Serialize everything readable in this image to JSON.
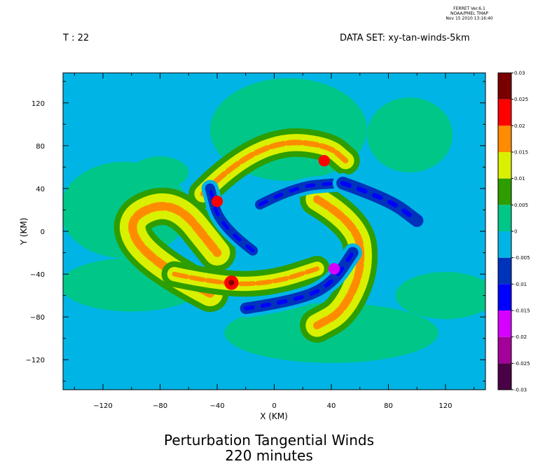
{
  "header": {
    "line1": "FERRET  Ver.6.1",
    "line2": "NOAA/PMEL TMAP",
    "line3": "Nov 15 2010 13:16:40",
    "time_label": "T : 22",
    "dataset_label": "DATA SET: xy-tan-winds-5km"
  },
  "title": {
    "line1": "Perturbation Tangential Winds",
    "line2": "220 minutes"
  },
  "chart_data": {
    "type": "heatmap",
    "xlabel": "X (KM)",
    "ylabel": "Y (KM)",
    "xlim": [
      -148,
      148
    ],
    "ylim": [
      -148,
      148
    ],
    "x_ticks": [
      -120,
      -80,
      -40,
      0,
      40,
      80,
      120
    ],
    "y_ticks": [
      -120,
      -80,
      -40,
      0,
      40,
      80,
      120
    ],
    "x_minor_step": 20,
    "y_minor_step": 20,
    "colorbar": {
      "levels": [
        "-0.03",
        "-0.025",
        "-0.02",
        "-0.015",
        "-0.01",
        "-0.005",
        "0",
        "0.005",
        "0.01",
        "0.015",
        "0.02",
        "0.025",
        "0.03"
      ],
      "colors": [
        "#4a0046",
        "#a4009a",
        "#d600ff",
        "#0000ff",
        "#0033bb",
        "#00b5e6",
        "#00c688",
        "#2d9d00",
        "#d9f000",
        "#ff8c00",
        "#ff0000",
        "#7a0000"
      ]
    },
    "background_level_color": "#00b5e6",
    "features": [
      {
        "level_color": "#00c688",
        "cx": 10,
        "cy": 95,
        "rx": 55,
        "ry": 48
      },
      {
        "level_color": "#00c688",
        "cx": 95,
        "cy": 90,
        "rx": 30,
        "ry": 35
      },
      {
        "level_color": "#00c688",
        "cx": -105,
        "cy": 20,
        "rx": 45,
        "ry": 45
      },
      {
        "level_color": "#00c688",
        "cx": -100,
        "cy": -50,
        "rx": 50,
        "ry": 25
      },
      {
        "level_color": "#00c688",
        "cx": 40,
        "cy": -95,
        "rx": 75,
        "ry": 28
      },
      {
        "level_color": "#00c688",
        "cx": 120,
        "cy": -60,
        "rx": 35,
        "ry": 22
      },
      {
        "level_color": "#00c688",
        "cx": -80,
        "cy": 55,
        "rx": 20,
        "ry": 15
      }
    ],
    "arms": [
      {
        "name": "upper",
        "path": [
          [
            -50,
            35
          ],
          [
            -30,
            62
          ],
          [
            5,
            85
          ],
          [
            38,
            80
          ],
          [
            50,
            66
          ]
        ],
        "widths": [
          12,
          7,
          3
        ]
      },
      {
        "name": "left",
        "path": [
          [
            -45,
            -58
          ],
          [
            -88,
            -28
          ],
          [
            -105,
            12
          ],
          [
            -70,
            30
          ],
          [
            -40,
            -20
          ]
        ],
        "widths": [
          18,
          11,
          4
        ]
      },
      {
        "name": "lower-left",
        "path": [
          [
            -70,
            -40
          ],
          [
            -35,
            -50
          ],
          [
            0,
            -48
          ],
          [
            30,
            -35
          ]
        ],
        "widths": [
          10,
          6,
          3
        ]
      },
      {
        "name": "right",
        "path": [
          [
            30,
            30
          ],
          [
            58,
            8
          ],
          [
            62,
            -35
          ],
          [
            48,
            -75
          ],
          [
            30,
            -88
          ]
        ],
        "widths": [
          16,
          10,
          4
        ]
      }
    ],
    "neg_arms": [
      {
        "name": "inner-upper",
        "path": [
          [
            -10,
            25
          ],
          [
            15,
            42
          ],
          [
            45,
            45
          ]
        ],
        "width": 7
      },
      {
        "name": "inner-left",
        "path": [
          [
            -15,
            -18
          ],
          [
            -38,
            5
          ],
          [
            -45,
            40
          ]
        ],
        "width": 7
      },
      {
        "name": "inner-lower",
        "path": [
          [
            -20,
            -72
          ],
          [
            15,
            -65
          ],
          [
            40,
            -50
          ],
          [
            55,
            -20
          ]
        ],
        "width": 8
      },
      {
        "name": "outer-right",
        "path": [
          [
            48,
            45
          ],
          [
            80,
            30
          ],
          [
            100,
            10
          ]
        ],
        "width": 9
      }
    ],
    "extrema": [
      {
        "color": "#ff0000",
        "x": -40,
        "y": 28,
        "r": 4
      },
      {
        "color": "#ff0000",
        "x": -30,
        "y": -48,
        "r": 5
      },
      {
        "color": "#7a0000",
        "x": -30,
        "y": -48,
        "r": 2
      },
      {
        "color": "#ff0000",
        "x": 35,
        "y": 66,
        "r": 4
      },
      {
        "color": "#d600ff",
        "x": 42,
        "y": -35,
        "r": 4
      }
    ]
  }
}
